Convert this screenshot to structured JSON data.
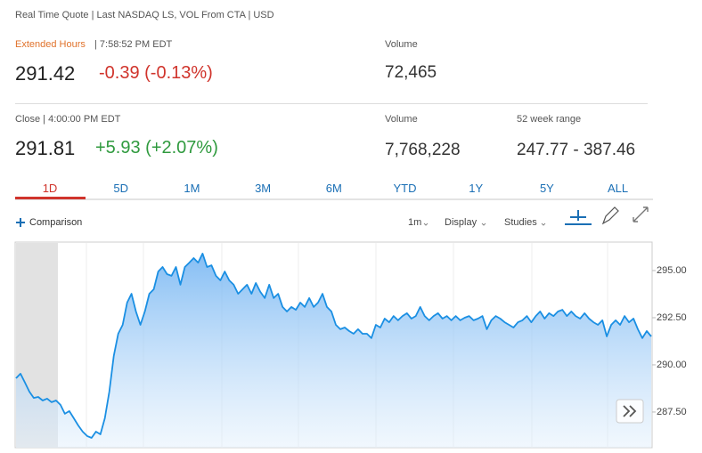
{
  "header": {
    "source": "Real Time Quote | Last NASDAQ LS, VOL From CTA | USD"
  },
  "extended": {
    "label": "Extended Hours",
    "time": "| 7:58:52 PM EDT",
    "price": "291.42",
    "change": "-0.39 (-0.13%)",
    "volume_label": "Volume",
    "volume": "72,465"
  },
  "close": {
    "label": "Close | 4:00:00 PM EDT",
    "price": "291.81",
    "change": "+5.93 (+2.07%)",
    "volume_label": "Volume",
    "volume": "7,768,228",
    "range_label": "52 week range",
    "range": "247.77 - 387.46"
  },
  "tabs": [
    "1D",
    "5D",
    "1M",
    "3M",
    "6M",
    "YTD",
    "1Y",
    "5Y",
    "ALL"
  ],
  "toolbar": {
    "comparison": "Comparison",
    "interval": "1m",
    "display": "Display",
    "studies": "Studies"
  },
  "chart_data": {
    "type": "area",
    "color": "#1a8fe3",
    "values": [
      289.29,
      289.53,
      289.06,
      288.58,
      288.25,
      288.3,
      288.11,
      288.21,
      288.02,
      288.11,
      287.88,
      287.41,
      287.55,
      287.17,
      286.79,
      286.46,
      286.23,
      286.13,
      286.46,
      286.32,
      287.17,
      288.58,
      290.47,
      291.65,
      292.12,
      293.3,
      293.77,
      292.83,
      292.12,
      292.83,
      293.77,
      294.01,
      294.95,
      295.19,
      294.81,
      294.72,
      295.19,
      294.25,
      295.19,
      295.42,
      295.66,
      295.42,
      295.9,
      295.19,
      295.28,
      294.72,
      294.48,
      294.95,
      294.48,
      294.25,
      293.77,
      294.01,
      294.25,
      293.77,
      294.34,
      293.87,
      293.54,
      294.25,
      293.54,
      293.77,
      293.07,
      292.83,
      293.07,
      292.92,
      293.3,
      293.07,
      293.54,
      293.07,
      293.3,
      293.77,
      293.07,
      292.83,
      292.12,
      291.89,
      291.98,
      291.79,
      291.65,
      291.89,
      291.65,
      291.65,
      291.42,
      292.12,
      291.98,
      292.45,
      292.26,
      292.59,
      292.36,
      292.59,
      292.74,
      292.45,
      292.59,
      293.07,
      292.59,
      292.36,
      292.59,
      292.74,
      292.45,
      292.59,
      292.36,
      292.59,
      292.36,
      292.5,
      292.59,
      292.36,
      292.45,
      292.59,
      291.89,
      292.36,
      292.59,
      292.45,
      292.26,
      292.12,
      291.98,
      292.26,
      292.36,
      292.59,
      292.26,
      292.59,
      292.83,
      292.45,
      292.74,
      292.59,
      292.83,
      292.92,
      292.59,
      292.83,
      292.59,
      292.45,
      292.74,
      292.45,
      292.26,
      292.12,
      292.36,
      291.51,
      292.12,
      292.36,
      292.12,
      292.59,
      292.26,
      292.45,
      291.89,
      291.42,
      291.79,
      291.51
    ],
    "ylim": [
      285.61,
      296.51
    ],
    "yticks": [
      {
        "value": 287.5,
        "label": "287.50"
      },
      {
        "value": 290,
        "label": "290.00"
      },
      {
        "value": 292.5,
        "label": "292.50"
      },
      {
        "value": 295,
        "label": "295.00"
      }
    ]
  }
}
